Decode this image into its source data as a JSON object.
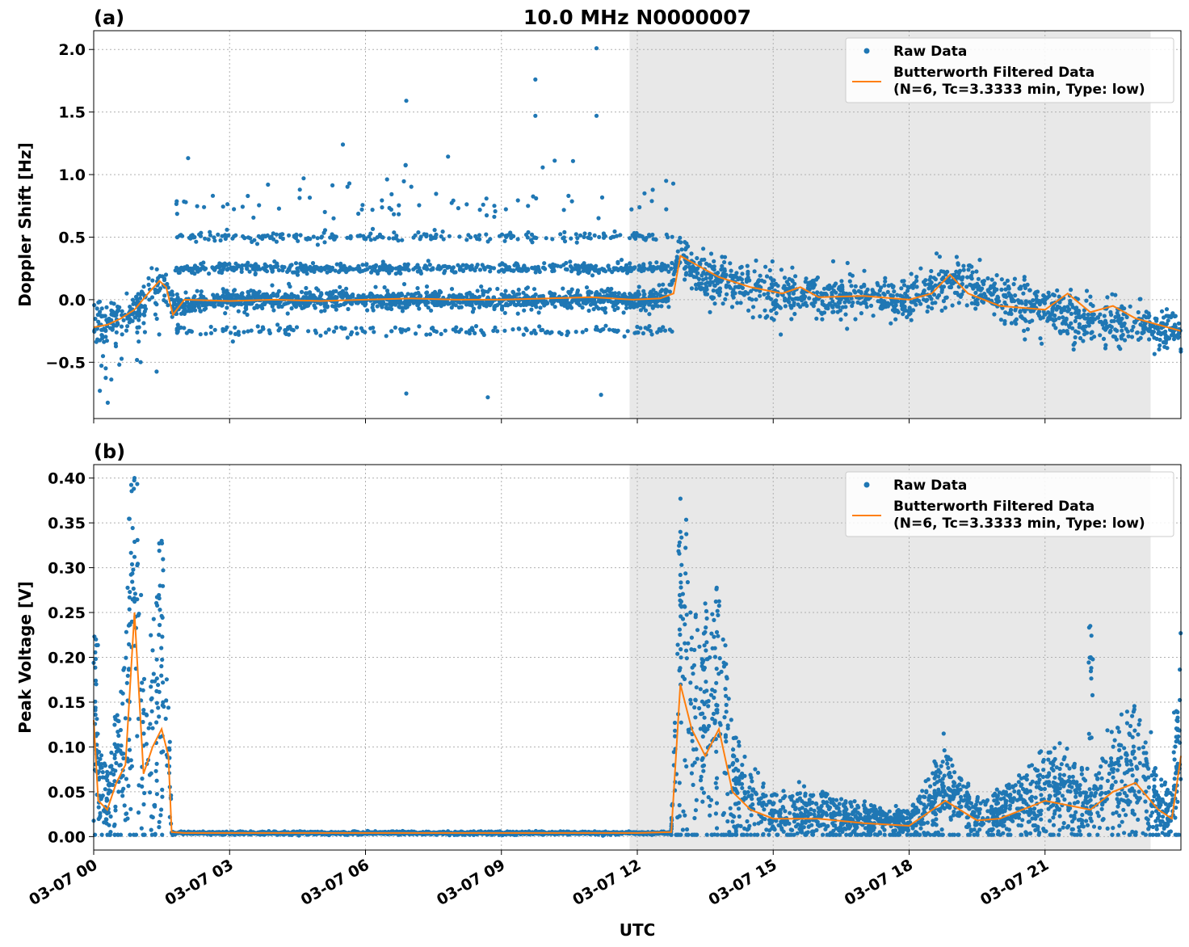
{
  "figure": {
    "title": "10.0 MHz N0000007",
    "xlabel": "UTC",
    "colors": {
      "raw": "#1f77b4",
      "filtered": "#ff7f0e",
      "shade": "#e8e8e8"
    }
  },
  "chart_data": [
    {
      "type": "scatter",
      "panel_label": "(a)",
      "title": "10.0 MHz N0000007",
      "ylabel": "Doppler Shift [Hz]",
      "xlabel": "",
      "xlim": [
        0,
        24
      ],
      "ylim": [
        -0.95,
        2.15
      ],
      "x_ticks": [
        0,
        3,
        6,
        9,
        12,
        15,
        18,
        21
      ],
      "y_ticks": [
        -0.5,
        0.0,
        0.5,
        1.0,
        1.5,
        2.0
      ],
      "y_tick_labels": [
        "−0.5",
        "0.0",
        "0.5",
        "1.0",
        "1.5",
        "2.0"
      ],
      "grid": true,
      "legend_position": "top-right",
      "shaded_region_hours": [
        11.83,
        23.33
      ],
      "series": [
        {
          "name": "Raw Data",
          "style": "points",
          "baseline_hours": [
            0,
            0.5,
            1.0,
            1.5,
            1.75,
            3,
            6,
            9,
            11.9,
            12.7,
            12.9,
            13.5,
            15,
            18,
            19,
            21,
            24
          ],
          "baseline_values": [
            -0.22,
            -0.15,
            -0.05,
            0.15,
            -0.05,
            0.0,
            0.0,
            0.0,
            0.0,
            0.02,
            0.35,
            0.18,
            0.05,
            0.0,
            0.15,
            -0.1,
            -0.25
          ]
        },
        {
          "name": "Butterworth Filtered Data\n(N=6, Tc=3.3333 min, Type: low)",
          "legend_lines": [
            "Butterworth Filtered Data",
            "(N=6, Tc=3.3333 min, Type: low)"
          ],
          "style": "line",
          "x": [
            0,
            0.3,
            0.6,
            0.9,
            1.2,
            1.45,
            1.6,
            1.75,
            2.0,
            3,
            4,
            5,
            6,
            7,
            8,
            9,
            10,
            11,
            11.9,
            12.5,
            12.8,
            12.95,
            13.3,
            13.8,
            14.5,
            15.2,
            15.6,
            16.0,
            17,
            18,
            18.5,
            18.9,
            19.3,
            20,
            21,
            21.5,
            22,
            22.5,
            23,
            23.5,
            24
          ],
          "y": [
            -0.22,
            -0.2,
            -0.15,
            -0.08,
            0.05,
            0.15,
            0.1,
            -0.12,
            0.0,
            -0.01,
            0.0,
            -0.01,
            0.0,
            0.01,
            0.0,
            0.0,
            0.01,
            0.02,
            0.0,
            0.01,
            0.05,
            0.35,
            0.28,
            0.18,
            0.1,
            0.05,
            0.1,
            0.02,
            0.03,
            0.0,
            0.05,
            0.2,
            0.05,
            -0.05,
            -0.08,
            0.05,
            -0.1,
            -0.05,
            -0.15,
            -0.2,
            -0.25
          ]
        }
      ]
    },
    {
      "type": "scatter",
      "panel_label": "(b)",
      "title": "",
      "ylabel": "Peak Voltage [V]",
      "xlabel": "UTC",
      "xlim": [
        0,
        24
      ],
      "ylim": [
        -0.015,
        0.415
      ],
      "x_ticks": [
        0,
        3,
        6,
        9,
        12,
        15,
        18,
        21
      ],
      "x_tick_labels": [
        "03-07 00",
        "03-07 03",
        "03-07 06",
        "03-07 09",
        "03-07 12",
        "03-07 15",
        "03-07 18",
        "03-07 21"
      ],
      "y_ticks": [
        0.0,
        0.05,
        0.1,
        0.15,
        0.2,
        0.25,
        0.3,
        0.35,
        0.4
      ],
      "y_tick_labels": [
        "0.00",
        "0.05",
        "0.10",
        "0.15",
        "0.20",
        "0.25",
        "0.30",
        "0.35",
        "0.40"
      ],
      "grid": true,
      "legend_position": "top-right",
      "shaded_region_hours": [
        11.83,
        23.33
      ],
      "series": [
        {
          "name": "Raw Data",
          "style": "points",
          "peaks": [
            {
              "x": 0.05,
              "y": 0.22
            },
            {
              "x": 0.9,
              "y": 0.4
            },
            {
              "x": 1.5,
              "y": 0.33
            },
            {
              "x": 12.95,
              "y": 0.34
            },
            {
              "x": 13.5,
              "y": 0.26
            },
            {
              "x": 22.0,
              "y": 0.235
            },
            {
              "x": 23.9,
              "y": 0.14
            }
          ]
        },
        {
          "name": "Butterworth Filtered Data\n(N=6, Tc=3.3333 min, Type: low)",
          "legend_lines": [
            "Butterworth Filtered Data",
            "(N=6, Tc=3.3333 min, Type: low)"
          ],
          "style": "line",
          "x": [
            0,
            0.1,
            0.3,
            0.5,
            0.7,
            0.9,
            1.1,
            1.3,
            1.5,
            1.65,
            1.72,
            2.0,
            6,
            9,
            12,
            12.75,
            12.95,
            13.2,
            13.5,
            13.8,
            14.1,
            14.5,
            15,
            16,
            17,
            18,
            18.8,
            19.5,
            20,
            20.5,
            21,
            21.5,
            22,
            22.5,
            23,
            23.5,
            23.8,
            24
          ],
          "y": [
            0.13,
            0.04,
            0.03,
            0.06,
            0.08,
            0.25,
            0.07,
            0.1,
            0.12,
            0.09,
            0.005,
            0.004,
            0.004,
            0.004,
            0.004,
            0.005,
            0.17,
            0.12,
            0.09,
            0.12,
            0.05,
            0.03,
            0.02,
            0.02,
            0.015,
            0.012,
            0.04,
            0.018,
            0.02,
            0.03,
            0.04,
            0.035,
            0.03,
            0.05,
            0.06,
            0.03,
            0.02,
            0.09
          ]
        }
      ]
    }
  ]
}
